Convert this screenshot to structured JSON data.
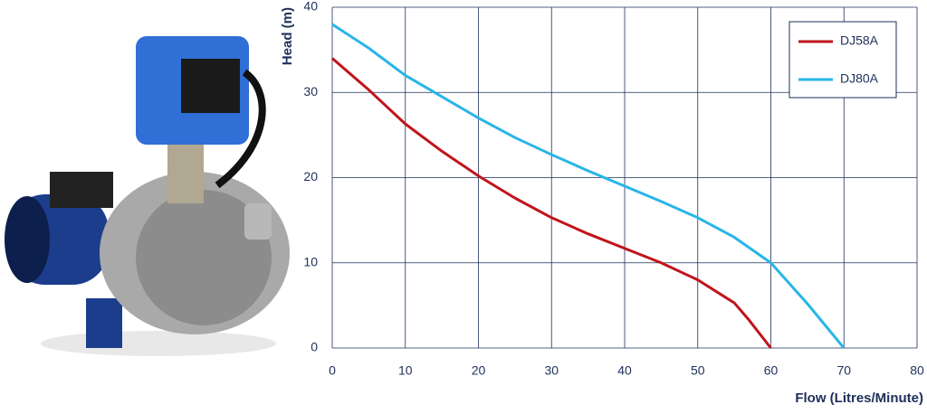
{
  "chart_data": {
    "type": "line",
    "xlabel": "Flow (Litres/Minute)",
    "ylabel": "Head (m)",
    "xlim": [
      0,
      80
    ],
    "xticks": [
      0,
      10,
      20,
      30,
      40,
      50,
      60,
      70,
      80
    ],
    "ylim": [
      0,
      40
    ],
    "yticks": [
      0,
      10,
      20,
      30,
      40
    ],
    "grid": true,
    "legend": "upper right",
    "series": [
      {
        "name": "DJ58A",
        "color": "#c0141c",
        "x": [
          0,
          5,
          10,
          15,
          20,
          25,
          30,
          35,
          40,
          45,
          50,
          55,
          57,
          60
        ],
        "values": [
          34,
          30.3,
          26.3,
          23.1,
          20.2,
          17.6,
          15.3,
          13.4,
          11.7,
          10,
          8,
          5.3,
          3.3,
          0
        ]
      },
      {
        "name": "DJ80A",
        "color": "#29b5e8",
        "x": [
          0,
          5,
          10,
          15,
          20,
          25,
          30,
          35,
          40,
          45,
          50,
          55,
          60,
          65,
          70
        ],
        "values": [
          38,
          35.2,
          32,
          29.5,
          27,
          24.7,
          22.7,
          20.8,
          19,
          17.2,
          15.3,
          13,
          10,
          5.2,
          0
        ]
      }
    ]
  }
}
